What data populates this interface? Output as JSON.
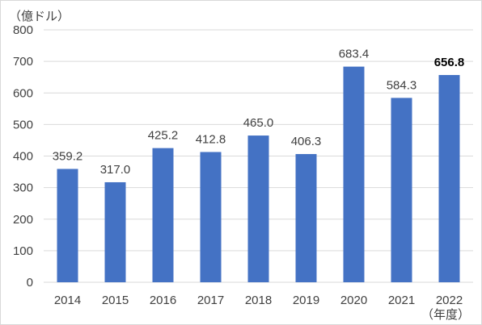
{
  "chart_data": {
    "type": "bar",
    "title": "",
    "y_unit_label": "（億ドル）",
    "x_unit_label": "（年度）",
    "categories": [
      "2014",
      "2015",
      "2016",
      "2017",
      "2018",
      "2019",
      "2020",
      "2021",
      "2022"
    ],
    "values": [
      359.2,
      317.0,
      425.2,
      412.8,
      465.0,
      406.3,
      683.4,
      584.3,
      656.8
    ],
    "value_labels": [
      "359.2",
      "317.0",
      "425.2",
      "412.8",
      "465.0",
      "406.3",
      "683.4",
      "584.3",
      "656.8"
    ],
    "highlight_index": 8,
    "ylim": [
      0,
      800
    ],
    "yticks": [
      0,
      100,
      200,
      300,
      400,
      500,
      600,
      700,
      800
    ],
    "grid": true,
    "bar_color": "#4472c4",
    "grid_color": "#d9d9d9"
  }
}
